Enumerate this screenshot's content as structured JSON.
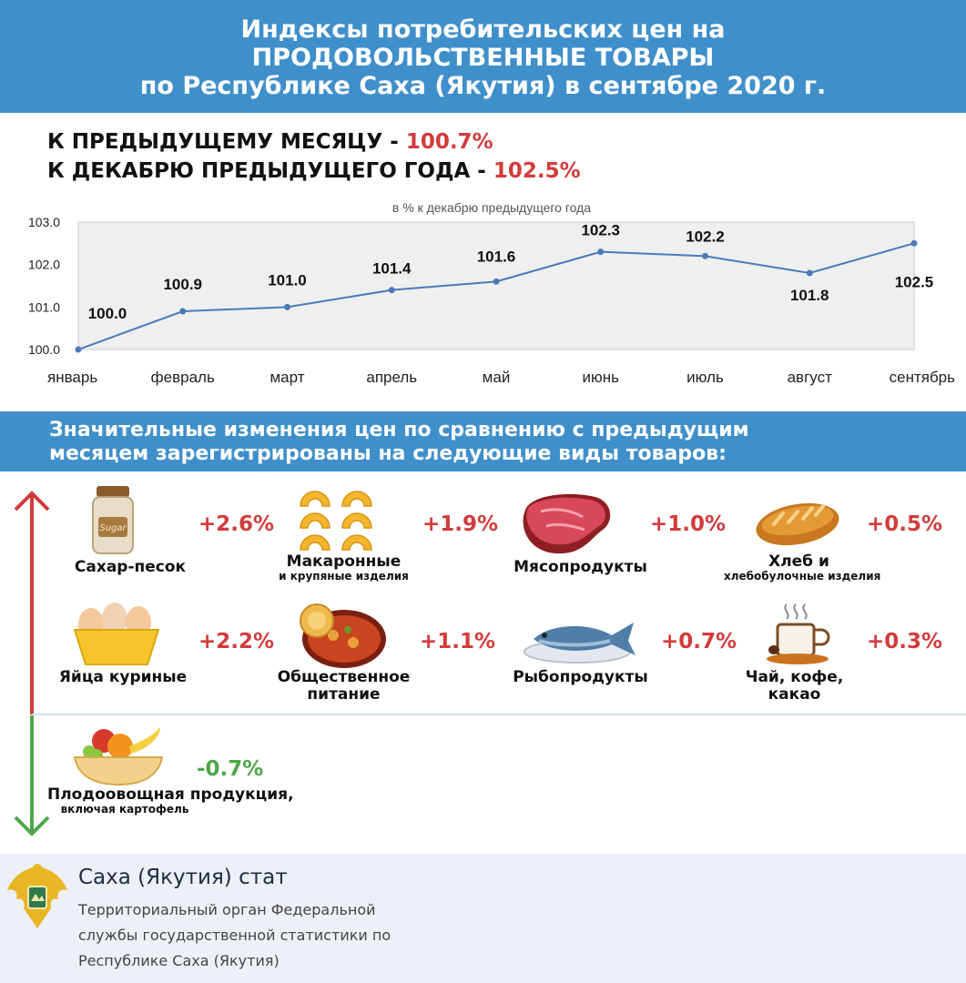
{
  "header": {
    "line1": "Индексы потребительских цен на",
    "line2": "ПРОДОВОЛЬСТВЕННЫЕ ТОВАРЫ",
    "line3": "по Республике Саха (Якутия) в сентябре 2020 г."
  },
  "summary": {
    "prev_month_label": "К ПРЕДЫДУЩЕМУ МЕСЯЦУ - ",
    "prev_month_value": "100.7%",
    "dec_label": "К ДЕКАБРЮ ПРЕДЫДУЩЕГО ГОДА - ",
    "dec_value": "102.5%"
  },
  "chart_data": {
    "type": "line",
    "title": "в % к декабрю предыдущего года",
    "categories": [
      "январь",
      "февраль",
      "март",
      "апрель",
      "май",
      "июнь",
      "июль",
      "август",
      "сентябрь"
    ],
    "values": [
      100.0,
      100.9,
      101.0,
      101.4,
      101.6,
      102.3,
      102.2,
      101.8,
      102.5
    ],
    "value_labels": [
      "100.0",
      "100.9",
      "101.0",
      "101.4",
      "101.6",
      "102.3",
      "102.2",
      "101.8",
      "102.5"
    ],
    "y_ticks": [
      "100.0",
      "101.0",
      "102.0",
      "103.0"
    ],
    "ylim": [
      100,
      103
    ],
    "line_color": "#4a7ab8",
    "grid": false
  },
  "changes": {
    "heading_line1": "Значительные изменения цен по сравнению с предыдущим",
    "heading_line2": "месяцем зарегистрированы на следующие виды товаров:",
    "items": [
      {
        "label": "Сахар-песок",
        "sub": "",
        "value": "+2.6%",
        "icon": "sugar-jar-icon"
      },
      {
        "label": "Макаронные",
        "sub": "и крупяные изделия",
        "value": "+1.9%",
        "icon": "pasta-icon"
      },
      {
        "label": "Мясопродукты",
        "sub": "",
        "value": "+1.0%",
        "icon": "meat-icon"
      },
      {
        "label": "Хлеб и",
        "sub": "хлебобулочные изделия",
        "value": "+0.5%",
        "icon": "bread-icon"
      },
      {
        "label": "Яйца куриные",
        "sub": "",
        "value": "+2.2%",
        "icon": "eggs-icon"
      },
      {
        "label": "Общественное питание",
        "sub": "",
        "value": "+1.1%",
        "icon": "food-plate-icon"
      },
      {
        "label": "Рыбопродукты",
        "sub": "",
        "value": "+0.7%",
        "icon": "fish-icon"
      },
      {
        "label": "Чай, кофе, какао",
        "sub": "",
        "value": "+0.3%",
        "icon": "coffee-cup-icon"
      },
      {
        "label": "Плодоовощная продукция,",
        "sub": "включая картофель",
        "value": "-0.7%",
        "icon": "fruit-bowl-icon"
      }
    ]
  },
  "colors": {
    "banner": "#3f8fca",
    "increase": "#d23b3b",
    "decrease": "#4ea64a"
  },
  "footer": {
    "org_name": "Саха (Якутия) стат",
    "desc_line1": "Территориальный орган Федеральной",
    "desc_line2": "службы государственной статистики по",
    "desc_line3": "Республике Саха (Якутия)"
  }
}
